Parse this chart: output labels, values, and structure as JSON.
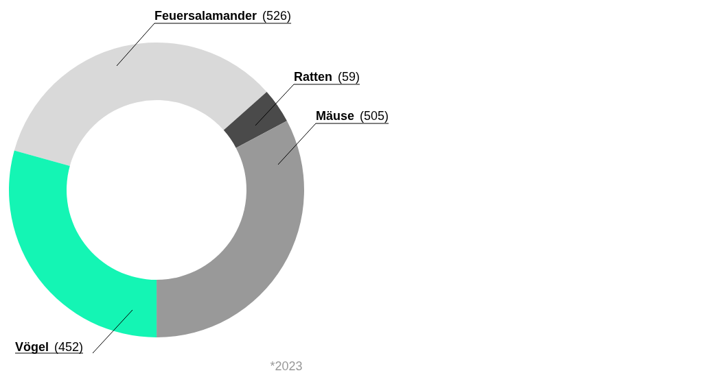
{
  "chart_data": {
    "type": "donut",
    "categories": [
      "Feuersalamander",
      "Ratten",
      "Mäuse",
      "Vögel"
    ],
    "values": [
      526,
      59,
      505,
      452
    ],
    "value_labels": [
      "(526)",
      "(59)",
      "(505)",
      "(452)"
    ],
    "colors": [
      "#d9d9d9",
      "#4a4a4a",
      "#999999",
      "#14f5b4"
    ],
    "annotations": [
      "*2023"
    ]
  }
}
